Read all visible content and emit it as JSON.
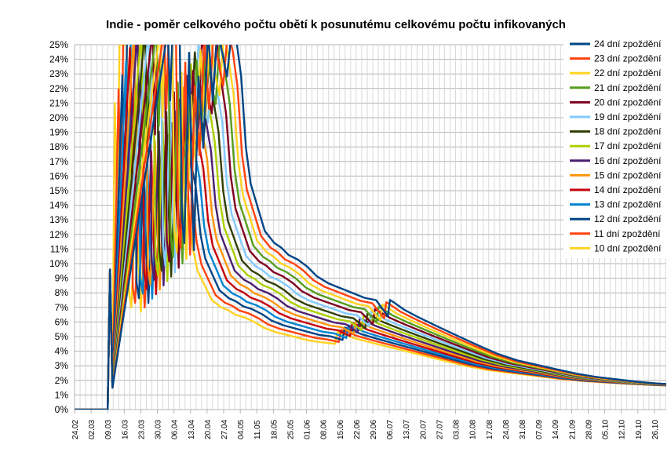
{
  "chart_data": {
    "type": "line",
    "title": "Indie - poměr celkového počtu obětí k posunutému celkovému počtu infikovaných",
    "xlabel": "",
    "ylabel": "",
    "ylim": [
      0,
      25
    ],
    "y_ticks": [
      "0%",
      "1%",
      "2%",
      "3%",
      "4%",
      "5%",
      "6%",
      "7%",
      "8%",
      "9%",
      "10%",
      "11%",
      "12%",
      "13%",
      "14%",
      "15%",
      "16%",
      "17%",
      "18%",
      "19%",
      "20%",
      "21%",
      "22%",
      "23%",
      "24%",
      "25%"
    ],
    "x_ticks": [
      "24.02",
      "02.03",
      "09.03",
      "16.03",
      "23.03",
      "30.03",
      "06.04",
      "13.04",
      "20.04",
      "27.04",
      "04.05",
      "11.05",
      "18.05",
      "25.05",
      "01.06",
      "08.06",
      "15.06",
      "22.06",
      "29.06",
      "06.07",
      "13.07",
      "20.07",
      "27.07",
      "03.08",
      "10.08",
      "17.08",
      "24.08",
      "31.08",
      "07.09",
      "14.09",
      "21.09",
      "28.09",
      "05.10",
      "12.10",
      "19.10",
      "26.10"
    ],
    "x_day_range": [
      0,
      250
    ],
    "grid": true,
    "legend_position": "right",
    "series": [
      {
        "name": "24 dní zpoždění",
        "color": "#004586",
        "lag": 24
      },
      {
        "name": "23 dní zpoždění",
        "color": "#ff420e",
        "lag": 23
      },
      {
        "name": "22 dní zpoždění",
        "color": "#ffd320",
        "lag": 22
      },
      {
        "name": "21 dní zpoždění",
        "color": "#579d1c",
        "lag": 21
      },
      {
        "name": "20 dní zpoždění",
        "color": "#7e0021",
        "lag": 20
      },
      {
        "name": "19 dní zpoždění",
        "color": "#83caff",
        "lag": 19
      },
      {
        "name": "18 dní zpoždění",
        "color": "#314004",
        "lag": 18
      },
      {
        "name": "17 dní zpoždění",
        "color": "#aecf00",
        "lag": 17
      },
      {
        "name": "16 dní zpoždění",
        "color": "#4b1f6f",
        "lag": 16
      },
      {
        "name": "15 dní zpoždění",
        "color": "#ff950e",
        "lag": 15
      },
      {
        "name": "14 dní zpoždění",
        "color": "#c5000b",
        "lag": 14
      },
      {
        "name": "13 dní zpoždění",
        "color": "#0084d1",
        "lag": 13
      },
      {
        "name": "12 dní zpoždění",
        "color": "#004586",
        "lag": 12
      },
      {
        "name": "11 dní zpoždění",
        "color": "#ff420e",
        "lag": 11
      },
      {
        "name": "10 dní zpoždění",
        "color": "#ffd320",
        "lag": 10
      }
    ],
    "base_curve_10_days": [
      [
        0,
        0
      ],
      [
        14,
        0
      ],
      [
        15,
        9.6
      ],
      [
        16,
        1.5
      ],
      [
        17,
        21
      ],
      [
        18,
        13
      ],
      [
        19,
        25
      ],
      [
        22,
        25
      ],
      [
        23,
        8
      ],
      [
        24,
        7
      ],
      [
        26,
        15
      ],
      [
        27,
        10
      ],
      [
        28,
        6.7
      ],
      [
        30,
        14
      ],
      [
        32,
        11
      ],
      [
        34,
        16
      ],
      [
        36,
        13
      ],
      [
        38,
        18
      ],
      [
        40,
        15
      ],
      [
        42,
        14
      ],
      [
        44,
        17.5
      ],
      [
        46,
        15.5
      ],
      [
        48,
        14
      ],
      [
        50,
        11
      ],
      [
        52,
        9.5
      ],
      [
        55,
        8.5
      ],
      [
        58,
        7.5
      ],
      [
        62,
        7.0
      ],
      [
        65,
        6.8
      ],
      [
        68,
        6.5
      ],
      [
        72,
        6.3
      ],
      [
        76,
        6.0
      ],
      [
        80,
        5.6
      ],
      [
        85,
        5.3
      ],
      [
        90,
        5.1
      ],
      [
        95,
        4.9
      ],
      [
        100,
        4.7
      ],
      [
        105,
        4.6
      ],
      [
        110,
        4.5
      ],
      [
        111,
        5.3
      ],
      [
        113,
        5.2
      ],
      [
        118,
        4.9
      ],
      [
        125,
        4.6
      ],
      [
        135,
        4.2
      ],
      [
        145,
        3.8
      ],
      [
        155,
        3.4
      ],
      [
        165,
        3.0
      ],
      [
        175,
        2.7
      ],
      [
        185,
        2.5
      ],
      [
        195,
        2.3
      ],
      [
        205,
        2.1
      ],
      [
        215,
        1.95
      ],
      [
        225,
        1.85
      ],
      [
        235,
        1.75
      ],
      [
        245,
        1.68
      ],
      [
        250,
        1.65
      ]
    ]
  }
}
